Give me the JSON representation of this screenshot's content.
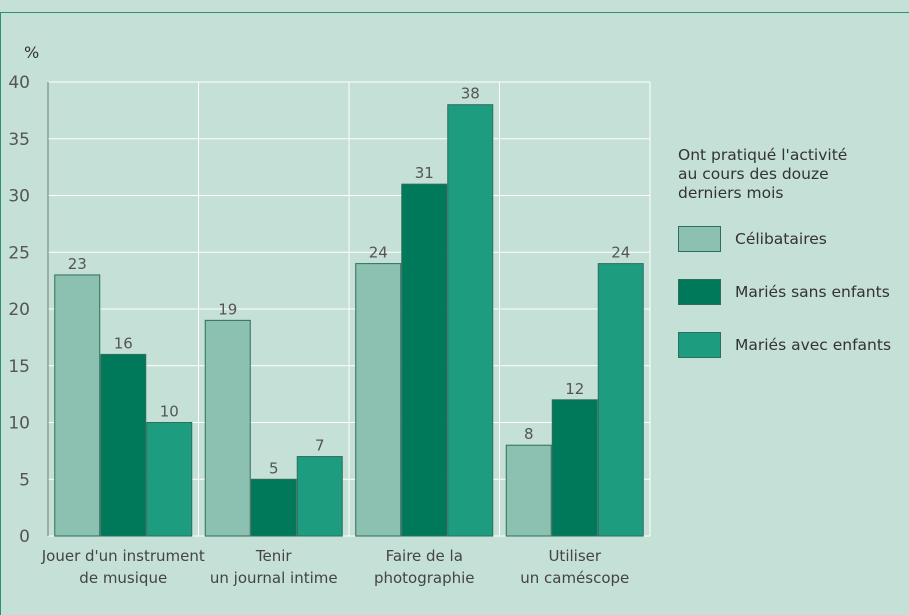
{
  "chart_data": {
    "type": "bar",
    "ylabel": "%",
    "ylim": [
      0,
      40
    ],
    "yticks": [
      0,
      5,
      10,
      15,
      20,
      25,
      30,
      35,
      40
    ],
    "grid": true,
    "legend_position": "right",
    "legend_title": "Ont pratiqué l'activité\nau cours des douze\nderniers mois",
    "categories": [
      [
        "Jouer d'un instrument",
        "de musique"
      ],
      [
        "Tenir",
        "un journal intime"
      ],
      [
        "Faire de la",
        "photographie"
      ],
      [
        "Utiliser",
        "un caméscope"
      ]
    ],
    "series": [
      {
        "name": "Célibataires",
        "color": "#8cc0b0",
        "values": [
          23,
          19,
          24,
          8
        ]
      },
      {
        "name": "Mariés sans enfants",
        "color": "#00785a",
        "values": [
          16,
          5,
          31,
          12
        ]
      },
      {
        "name": "Mariés avec enfants",
        "color": "#1e9c80",
        "values": [
          10,
          7,
          38,
          24
        ]
      }
    ]
  }
}
